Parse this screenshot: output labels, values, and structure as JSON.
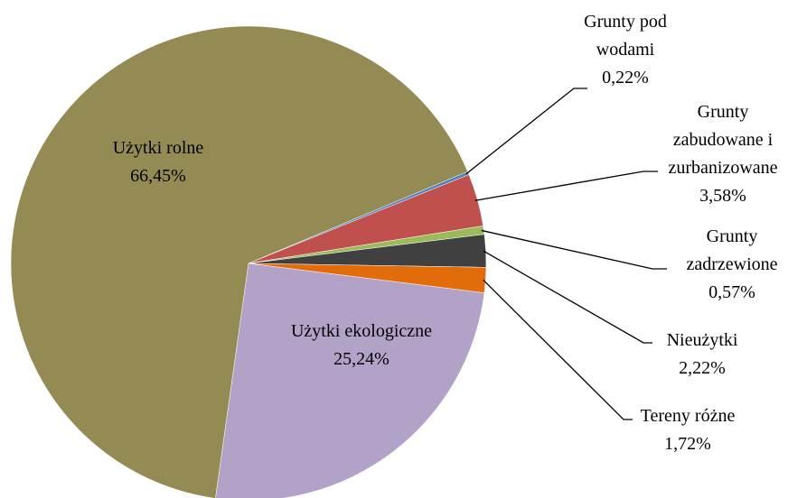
{
  "chart_data": {
    "type": "pie",
    "categories": [
      "Użytki rolne",
      "Grunty pod wodami",
      "Grunty zabudowane i zurbanizowane",
      "Grunty zadrzewione",
      "Nieużytki",
      "Tereny różne",
      "Użytki ekologiczne"
    ],
    "values": [
      66.45,
      0.22,
      3.58,
      0.57,
      2.22,
      1.72,
      25.24
    ],
    "value_labels": [
      "66,45%",
      "0,22%",
      "3,58%",
      "0,57%",
      "2,22%",
      "1,72%",
      "25,24%"
    ],
    "colors": [
      "#948a54",
      "#4f81bd",
      "#c0504d",
      "#9bbb59",
      "#404040",
      "#e36c0a",
      "#b2a2c7"
    ]
  }
}
